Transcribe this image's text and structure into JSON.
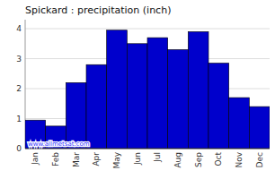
{
  "chart_data": {
    "type": "bar",
    "title": "Spickard : precipitation (inch)",
    "categories": [
      "Jan",
      "Feb",
      "Mar",
      "Apr",
      "May",
      "Jun",
      "Jul",
      "Aug",
      "Sep",
      "Oct",
      "Nov",
      "Dec"
    ],
    "values": [
      0.95,
      0.75,
      2.2,
      2.8,
      3.95,
      3.5,
      3.7,
      3.3,
      3.9,
      2.85,
      1.7,
      1.4
    ],
    "color": "#0000CC",
    "ylim": [
      0,
      4.3
    ],
    "yticks": [
      0,
      1,
      2,
      3,
      4
    ],
    "grid": true,
    "annotations": [
      "www.allmetsat.com"
    ]
  }
}
